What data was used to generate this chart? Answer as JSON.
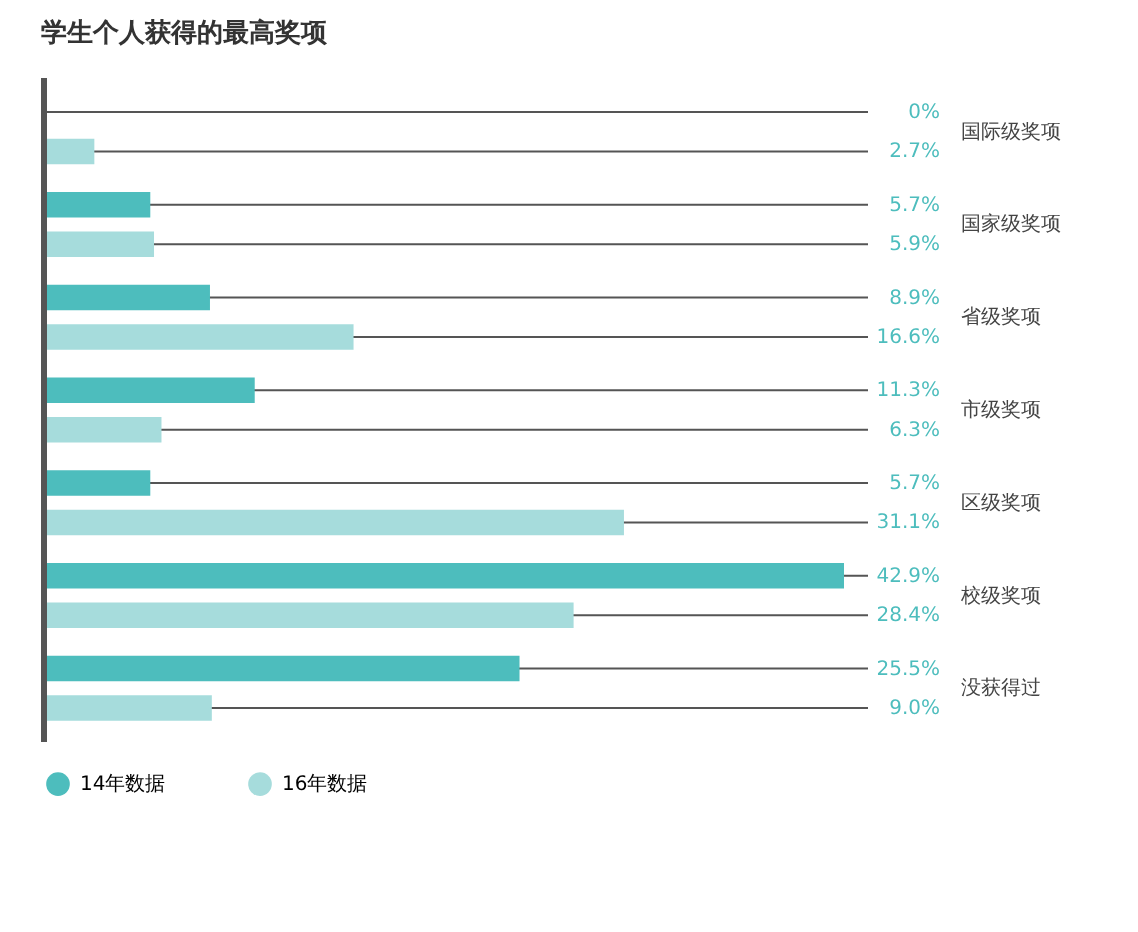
{
  "chart_data": {
    "type": "bar",
    "orientation": "horizontal",
    "title": "学生个人获得的最高奖项",
    "categories": [
      "国际级奖项",
      "国家级奖项",
      "省级奖项",
      "市级奖项",
      "区级奖项",
      "校级奖项",
      "没获得过"
    ],
    "series": [
      {
        "name": "14年数据",
        "color": "#4dbdbd",
        "values": [
          0,
          5.7,
          8.9,
          11.3,
          5.7,
          42.9,
          25.5
        ],
        "value_labels": [
          "0%",
          "5.7%",
          "8.9%",
          "11.3%",
          "5.7%",
          "42.9%",
          "25.5%"
        ]
      },
      {
        "name": "16年数据",
        "color": "#a6dcdc",
        "values": [
          2.7,
          5.9,
          16.6,
          6.3,
          31.1,
          28.4,
          9.0
        ],
        "value_labels": [
          "2.7%",
          "5.9%",
          "16.6%",
          "6.3%",
          "31.1%",
          "28.4%",
          "9.0%"
        ]
      }
    ],
    "legend": "bottom left",
    "grid": false,
    "tick_labels": "y"
  }
}
